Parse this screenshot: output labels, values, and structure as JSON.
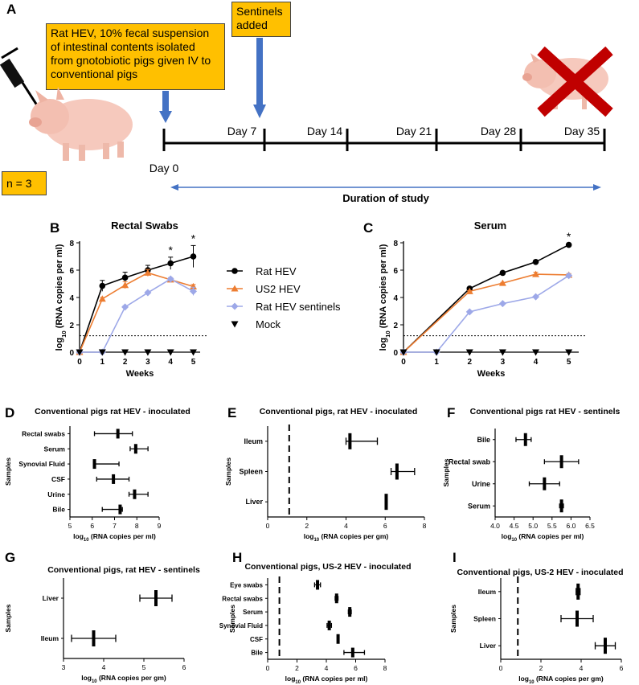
{
  "panel_letters": {
    "A": "A",
    "B": "B",
    "C": "C",
    "D": "D",
    "E": "E",
    "F": "F",
    "G": "G",
    "H": "H",
    "I": "I"
  },
  "timeline": {
    "inoculum_note": "Rat HEV, 10% fecal suspension of intestinal contents isolated from gnotobiotic pigs given IV to conventional pigs",
    "sentinels_note": "Sentinels added",
    "n_label": "n = 3",
    "day_labels": [
      "Day 0",
      "Day 7",
      "Day 14",
      "Day 21",
      "Day 28",
      "Day 35"
    ],
    "duration_label": "Duration of study",
    "colors": {
      "note_fill": "#ffc000",
      "arrow_blue": "#4472c4",
      "cross_red": "#c00000"
    },
    "icons": [
      "syringe-icon",
      "piglet-icon",
      "cross-icon"
    ]
  },
  "line_charts": [
    {
      "id": "B",
      "title": "Rectal Swabs",
      "xlabel": "Weeks",
      "ylabel": "log10 (RNA copies per ml)",
      "ylim": [
        0,
        8
      ],
      "x_ticks": [
        0,
        1,
        2,
        3,
        4,
        5
      ],
      "y_ticks": [
        0,
        2,
        4,
        6,
        8
      ],
      "threshold": 1.2,
      "annotations": [
        {
          "x": 4,
          "text": "*"
        },
        {
          "x": 5,
          "text": "*"
        }
      ],
      "series": [
        {
          "name": "Rat HEV",
          "color": "#000000",
          "marker": "circle",
          "x": [
            0,
            1,
            2,
            3,
            4,
            5
          ],
          "y": [
            0,
            4.85,
            5.45,
            6.0,
            6.5,
            7.0
          ],
          "err": [
            0,
            0.4,
            0.4,
            0.35,
            0.45,
            0.8
          ]
        },
        {
          "name": "US2 HEV",
          "color": "#ed7d31",
          "marker": "triangle",
          "x": [
            0,
            1,
            2,
            3,
            4,
            5
          ],
          "y": [
            0,
            3.9,
            4.9,
            5.8,
            5.3,
            4.8
          ],
          "err": [
            0,
            0.1,
            0.25,
            0.25,
            0.15,
            0.15
          ]
        },
        {
          "name": "Rat HEV sentinels",
          "color": "#9da8e8",
          "marker": "diamond",
          "x": [
            0,
            1,
            2,
            3,
            4,
            5
          ],
          "y": [
            0,
            0,
            3.3,
            4.35,
            5.35,
            4.45
          ],
          "err": [
            0,
            0,
            0.1,
            0.1,
            0.1,
            0.3
          ]
        },
        {
          "name": "Mock",
          "color": "#000000",
          "marker": "triangle-down",
          "x": [
            0,
            1,
            2,
            3,
            4,
            5
          ],
          "y": [
            0,
            0,
            0,
            0,
            0,
            0
          ],
          "err": [
            0,
            0,
            0,
            0,
            0,
            0
          ]
        }
      ]
    },
    {
      "id": "C",
      "title": "Serum",
      "xlabel": "Weeks",
      "ylabel": "log10 (RNA copies per ml)",
      "ylim": [
        0,
        8
      ],
      "x_ticks": [
        0,
        1,
        2,
        3,
        4,
        5
      ],
      "y_ticks": [
        0,
        2,
        4,
        6,
        8
      ],
      "threshold": 1.2,
      "annotations": [
        {
          "x": 5,
          "text": "*"
        }
      ],
      "series": [
        {
          "name": "Rat HEV",
          "color": "#000000",
          "marker": "circle",
          "x": [
            0,
            2,
            3,
            4,
            5
          ],
          "y": [
            0,
            4.65,
            5.8,
            6.6,
            7.85
          ],
          "err": [
            0,
            0.05,
            0.05,
            0.05,
            0.1
          ]
        },
        {
          "name": "US2 HEV",
          "color": "#ed7d31",
          "marker": "triangle",
          "x": [
            0,
            2,
            3,
            4,
            5
          ],
          "y": [
            0,
            4.45,
            5.05,
            5.7,
            5.65
          ],
          "err": [
            0,
            0.05,
            0.05,
            0.15,
            0.1
          ]
        },
        {
          "name": "Rat HEV sentinels",
          "color": "#9da8e8",
          "marker": "diamond",
          "x": [
            0,
            1,
            2,
            3,
            4,
            5
          ],
          "y": [
            0,
            0,
            2.95,
            3.55,
            4.05,
            5.6
          ],
          "err": [
            0,
            0,
            0.05,
            0.05,
            0.05,
            0.1
          ]
        },
        {
          "name": "Mock",
          "color": "#000000",
          "marker": "triangle-down",
          "x": [
            0,
            1,
            2,
            3,
            4,
            5
          ],
          "y": [
            0,
            0,
            0,
            0,
            0,
            0
          ],
          "err": [
            0,
            0,
            0,
            0,
            0,
            0
          ]
        }
      ]
    }
  ],
  "legend": {
    "entries": [
      "Rat HEV",
      "US2 HEV",
      "Rat HEV sentinels",
      "Mock"
    ]
  },
  "forest_charts": [
    {
      "id": "D",
      "title": "Conventional pigs rat HEV - inoculated",
      "xlabel": "log10 (RNA copies per ml)",
      "ylabel": "Samples",
      "xlim": [
        5,
        9
      ],
      "x_ticks": [
        5,
        6,
        7,
        8,
        9
      ],
      "threshold": null,
      "rows": [
        {
          "label": "Rectal swabs",
          "mean": 7.15,
          "low": 6.1,
          "high": 7.8
        },
        {
          "label": "Serum",
          "mean": 7.95,
          "low": 7.7,
          "high": 8.5
        },
        {
          "label": "Synovial Fluid",
          "mean": 6.1,
          "low": 6.05,
          "high": 7.2
        },
        {
          "label": "CSF",
          "mean": 6.95,
          "low": 6.2,
          "high": 7.65
        },
        {
          "label": "Urine",
          "mean": 7.9,
          "low": 7.65,
          "high": 8.5
        },
        {
          "label": "Bile",
          "mean": 7.25,
          "low": 6.45,
          "high": 7.35
        }
      ]
    },
    {
      "id": "E",
      "title": "Conventional pigs, rat HEV - inoculated",
      "xlabel": "log10 (RNA copies per gm)",
      "ylabel": "Samples",
      "xlim": [
        0,
        8
      ],
      "x_ticks": [
        0,
        2,
        4,
        6,
        8
      ],
      "threshold": 1.1,
      "rows": [
        {
          "label": "Ileum",
          "mean": 4.2,
          "low": 4.0,
          "high": 5.6
        },
        {
          "label": "Spleen",
          "mean": 6.6,
          "low": 6.3,
          "high": 7.5
        },
        {
          "label": "Liver",
          "mean": 6.05,
          "low": 6.0,
          "high": 6.1
        }
      ]
    },
    {
      "id": "F",
      "title": "Conventional pigs rat HEV - sentinels",
      "xlabel": "log10 (RNA copies per ml)",
      "ylabel": "Samples",
      "xlim": [
        4.0,
        6.5
      ],
      "x_ticks": [
        4.0,
        4.5,
        5.0,
        5.5,
        6.0,
        6.5
      ],
      "threshold": null,
      "rows": [
        {
          "label": "Bile",
          "mean": 4.8,
          "low": 4.55,
          "high": 4.95
        },
        {
          "label": "Rectal swab",
          "mean": 5.75,
          "low": 5.3,
          "high": 6.2
        },
        {
          "label": "Urine",
          "mean": 5.3,
          "low": 4.9,
          "high": 5.7
        },
        {
          "label": "Serum",
          "mean": 5.75,
          "low": 5.7,
          "high": 5.8
        }
      ]
    },
    {
      "id": "G",
      "title": "Conventional pigs, rat HEV - sentinels",
      "xlabel": "log10 (RNA copies per gm)",
      "ylabel": "Samples",
      "xlim": [
        3,
        6
      ],
      "x_ticks": [
        3,
        4,
        5,
        6
      ],
      "threshold": null,
      "rows": [
        {
          "label": "Liver",
          "mean": 5.3,
          "low": 4.9,
          "high": 5.7
        },
        {
          "label": "Ileum",
          "mean": 3.75,
          "low": 3.2,
          "high": 4.3
        }
      ]
    },
    {
      "id": "H",
      "title": "Conventional pigs, US-2 HEV - inoculated",
      "xlabel": "log10 (RNA copies per ml)",
      "ylabel": "Samples",
      "xlim": [
        0,
        8
      ],
      "x_ticks": [
        0,
        2,
        4,
        6,
        8
      ],
      "threshold": 0.8,
      "rows": [
        {
          "label": "Eye swabs",
          "mean": 3.4,
          "low": 3.2,
          "high": 3.6
        },
        {
          "label": "Rectal swabs",
          "mean": 4.7,
          "low": 4.6,
          "high": 4.8
        },
        {
          "label": "Serum",
          "mean": 5.6,
          "low": 5.5,
          "high": 5.7
        },
        {
          "label": "Synovial Fluid",
          "mean": 4.2,
          "low": 4.05,
          "high": 4.35
        },
        {
          "label": "CSF",
          "mean": 4.8,
          "low": 4.75,
          "high": 4.85
        },
        {
          "label": "Bile",
          "mean": 5.8,
          "low": 5.2,
          "high": 6.6
        }
      ]
    },
    {
      "id": "I",
      "title": "Conventional pigs, US-2 HEV - inoculated",
      "xlabel": "log10 (RNA copies per gm)",
      "ylabel": "Samples",
      "xlim": [
        0,
        6
      ],
      "x_ticks": [
        0,
        2,
        4,
        6
      ],
      "threshold": 0.85,
      "rows": [
        {
          "label": "Ileum",
          "mean": 3.85,
          "low": 3.75,
          "high": 3.95
        },
        {
          "label": "Spleen",
          "mean": 3.8,
          "low": 3.0,
          "high": 4.6
        },
        {
          "label": "Liver",
          "mean": 5.2,
          "low": 4.7,
          "high": 5.7
        }
      ]
    }
  ]
}
